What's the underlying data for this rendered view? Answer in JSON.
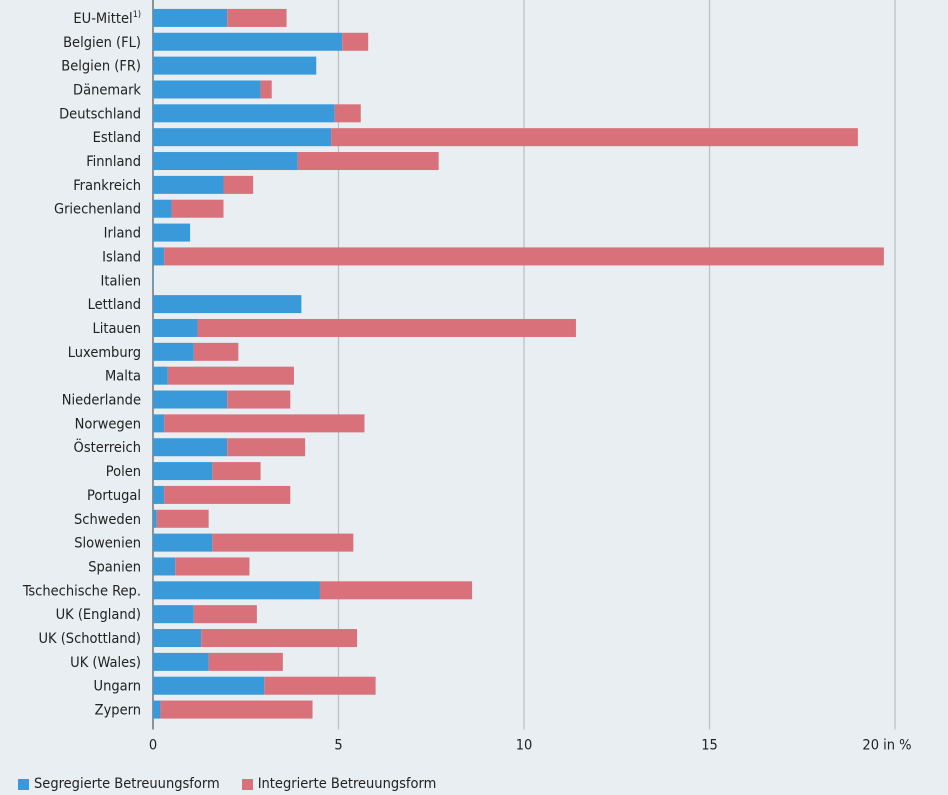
{
  "chart_data": {
    "type": "bar",
    "orientation": "horizontal",
    "stacked": true,
    "categories": [
      "EU-Mittel",
      "Belgien (FL)",
      "Belgien (FR)",
      "Dänemark",
      "Deutschland",
      "Estland",
      "Finnland",
      "Frankreich",
      "Griechenland",
      "Irland",
      "Island",
      "Italien",
      "Lettland",
      "Litauen",
      "Luxemburg",
      "Malta",
      "Niederlande",
      "Norwegen",
      "Österreich",
      "Polen",
      "Portugal",
      "Schweden",
      "Slowenien",
      "Spanien",
      "Tschechische Rep.",
      "UK (England)",
      "UK (Schottland)",
      "UK (Wales)",
      "Ungarn",
      "Zypern"
    ],
    "first_category_footnote": "1)",
    "series": [
      {
        "name": "Segregierte Betreuungsform",
        "color": "#3a9ad9",
        "values": [
          2.0,
          5.1,
          4.4,
          2.9,
          4.9,
          4.8,
          3.9,
          1.9,
          0.5,
          1.0,
          0.3,
          0.02,
          4.0,
          1.2,
          1.1,
          0.4,
          2.0,
          0.3,
          2.0,
          1.6,
          0.3,
          0.1,
          1.6,
          0.6,
          4.5,
          1.1,
          1.3,
          1.5,
          3.0,
          0.2
        ]
      },
      {
        "name": "Integrierte Betreuungsform",
        "color": "#d9717b",
        "values": [
          1.6,
          0.7,
          0.0,
          0.3,
          0.7,
          14.2,
          3.8,
          0.8,
          1.4,
          0.0,
          19.4,
          0.0,
          0.0,
          10.2,
          1.2,
          3.4,
          1.7,
          5.4,
          2.1,
          1.3,
          3.4,
          1.4,
          3.8,
          2.0,
          4.1,
          1.7,
          4.2,
          2.0,
          3.0,
          4.1
        ]
      }
    ],
    "xlim": [
      0,
      20
    ],
    "xticks": [
      "0",
      "5",
      "10",
      "15",
      "20 in %"
    ],
    "grid": "vertical",
    "legend_position": "bottom-left"
  }
}
